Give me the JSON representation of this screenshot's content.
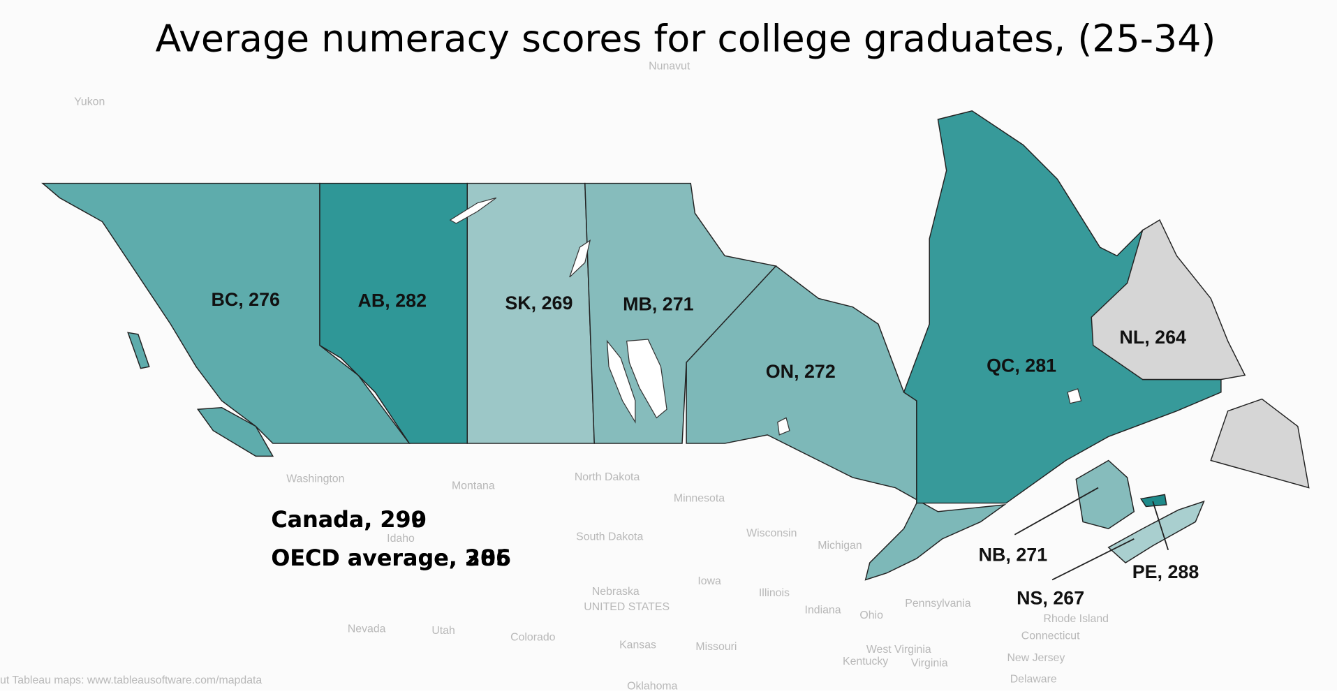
{
  "title": "Average numeracy scores for college graduates, (25-34)",
  "regions": [
    {
      "label": "BC, 276",
      "value": 276,
      "color": "#5eacac"
    },
    {
      "label": "AB, 282",
      "value": 282,
      "color": "#2f9797"
    },
    {
      "label": "SK, 269",
      "value": 269,
      "color": "#9cc7c7"
    },
    {
      "label": "MB, 271",
      "value": 271,
      "color": "#86bcbc"
    },
    {
      "label": "ON, 272",
      "value": 272,
      "color": "#7db8b8"
    },
    {
      "label": "QC, 281",
      "value": 281,
      "color": "#379a9a"
    },
    {
      "label": "NL, 264",
      "value": 264,
      "color": "#d6d6d6"
    },
    {
      "label": "NB, 271",
      "value": 271,
      "color": "#86bcbc"
    },
    {
      "label": "NS, 267",
      "value": 267,
      "color": "#a9cfcf"
    },
    {
      "label": "PE, 288",
      "value": 288,
      "color": "#1e8a8a"
    }
  ],
  "notes": [
    "Canada, 290",
    "Canada, 299",
    "OECD average, 285",
    "OECD average, 306"
  ],
  "basemap_labels": [
    "Yukon",
    "Nunavut",
    "Washington",
    "Montana",
    "North Dakota",
    "South Dakota",
    "Minnesota",
    "Wisconsin",
    "Michigan",
    "Idaho",
    "Nebraska",
    "UNITED STATES",
    "Iowa",
    "Illinois",
    "Indiana",
    "Ohio",
    "Pennsylvania",
    "Nevada",
    "Utah",
    "Colorado",
    "Kansas",
    "Missouri",
    "West Virginia",
    "Kentucky",
    "Virginia",
    "New Jersey",
    "Delaware",
    "Connecticut",
    "Rhode Island",
    "Oklahoma"
  ],
  "attribution": "ut Tableau maps: www.tableausoftware.com/mapdata"
}
